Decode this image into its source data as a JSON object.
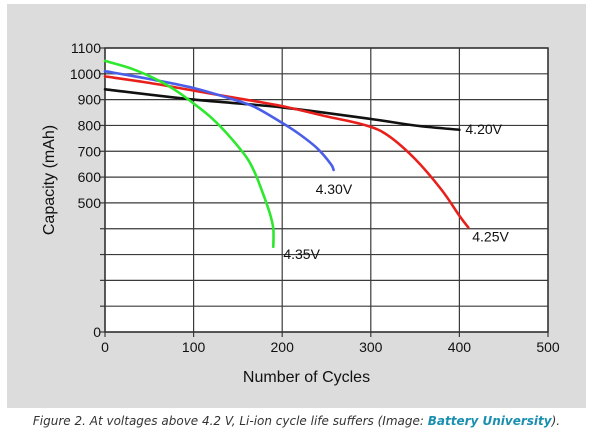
{
  "chart_data": {
    "type": "line",
    "title": "",
    "xlabel": "Number of Cycles",
    "ylabel": "Capacity (mAh)",
    "xlim": [
      0,
      500
    ],
    "ylim": [
      0,
      1100
    ],
    "x_ticks": [
      0,
      100,
      200,
      300,
      400,
      500
    ],
    "y_ticks": [
      0,
      100,
      200,
      300,
      400,
      500,
      600,
      700,
      800,
      900,
      1000,
      1100
    ],
    "y_ticks_visible": [
      0,
      500,
      600,
      700,
      800,
      900,
      1000,
      1100
    ],
    "grid": true,
    "series": [
      {
        "name": "4.20V",
        "color": "#111111",
        "points": [
          [
            0,
            940
          ],
          [
            100,
            900
          ],
          [
            200,
            870
          ],
          [
            300,
            825
          ],
          [
            350,
            800
          ],
          [
            400,
            783
          ]
        ]
      },
      {
        "name": "4.25V",
        "color": "#e8201c",
        "points": [
          [
            0,
            990
          ],
          [
            50,
            965
          ],
          [
            100,
            935
          ],
          [
            150,
            905
          ],
          [
            200,
            875
          ],
          [
            250,
            835
          ],
          [
            295,
            800
          ],
          [
            320,
            760
          ],
          [
            350,
            670
          ],
          [
            380,
            550
          ],
          [
            400,
            450
          ],
          [
            410,
            405
          ]
        ]
      },
      {
        "name": "4.30V",
        "color": "#4a5ee8",
        "points": [
          [
            0,
            1010
          ],
          [
            50,
            980
          ],
          [
            100,
            945
          ],
          [
            150,
            895
          ],
          [
            170,
            870
          ],
          [
            200,
            810
          ],
          [
            220,
            765
          ],
          [
            240,
            710
          ],
          [
            255,
            650
          ],
          [
            258,
            628
          ]
        ]
      },
      {
        "name": "4.35V",
        "color": "#2ee82e",
        "points": [
          [
            0,
            1050
          ],
          [
            30,
            1020
          ],
          [
            60,
            975
          ],
          [
            80,
            935
          ],
          [
            100,
            885
          ],
          [
            120,
            830
          ],
          [
            140,
            760
          ],
          [
            160,
            675
          ],
          [
            170,
            610
          ],
          [
            180,
            520
          ],
          [
            186,
            460
          ],
          [
            190,
            400
          ],
          [
            190,
            330
          ]
        ]
      }
    ]
  },
  "caption": {
    "text": "Figure 2. At voltages above 4.2 V, Li-ion cycle life suffers (Image: ",
    "link": "Battery University",
    "suffix": ")."
  }
}
